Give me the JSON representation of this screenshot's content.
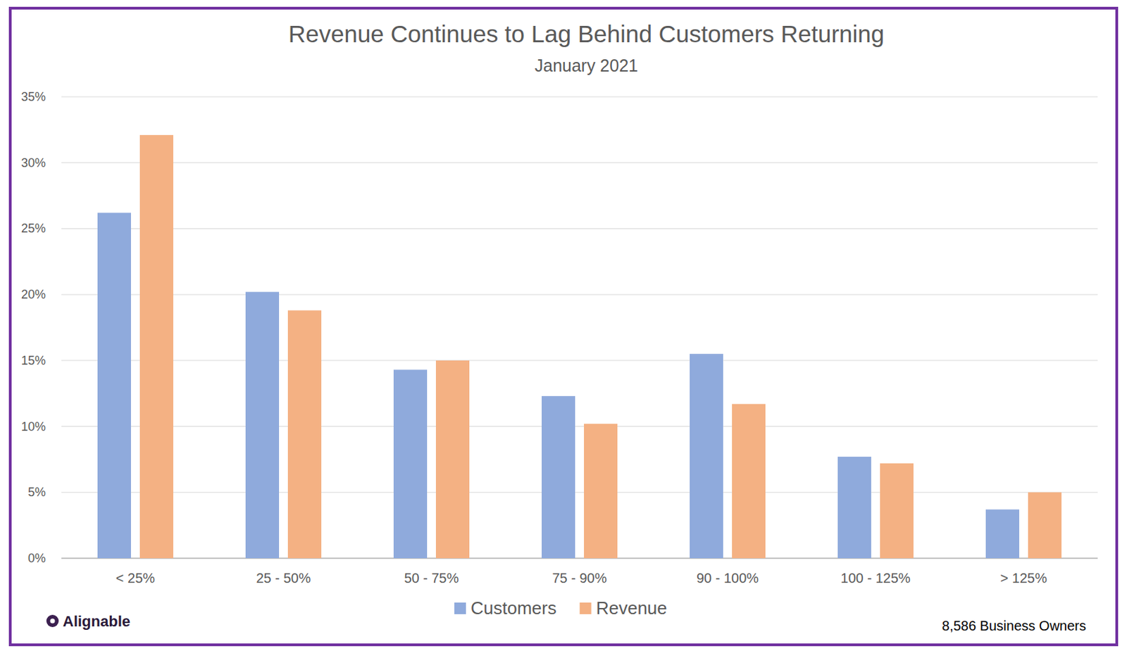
{
  "chart_data": {
    "type": "bar",
    "title": "Revenue Continues to Lag Behind Customers Returning",
    "subtitle": "January 2021",
    "categories": [
      "< 25%",
      "25 - 50%",
      "50 - 75%",
      "75 - 90%",
      "90 - 100%",
      "100 - 125%",
      "> 125%"
    ],
    "series": [
      {
        "name": "Customers",
        "color": "#8faadc",
        "values": [
          26.2,
          20.2,
          14.3,
          12.3,
          15.5,
          7.7,
          3.7
        ]
      },
      {
        "name": "Revenue",
        "color": "#f4b183",
        "values": [
          32.1,
          18.8,
          15.0,
          10.2,
          11.7,
          7.2,
          5.0
        ]
      }
    ],
    "ylim": [
      0,
      35
    ],
    "yticks": [
      {
        "value": 0,
        "label": "0%"
      },
      {
        "value": 5,
        "label": "5%"
      },
      {
        "value": 10,
        "label": "10%"
      },
      {
        "value": 15,
        "label": "15%"
      },
      {
        "value": 20,
        "label": "20%"
      },
      {
        "value": 25,
        "label": "25%"
      },
      {
        "value": 30,
        "label": "30%"
      },
      {
        "value": 35,
        "label": "35%"
      }
    ],
    "grid": true,
    "legend": "bottom",
    "logo": "Alignable",
    "footnote": "8,586 Business Owners"
  }
}
